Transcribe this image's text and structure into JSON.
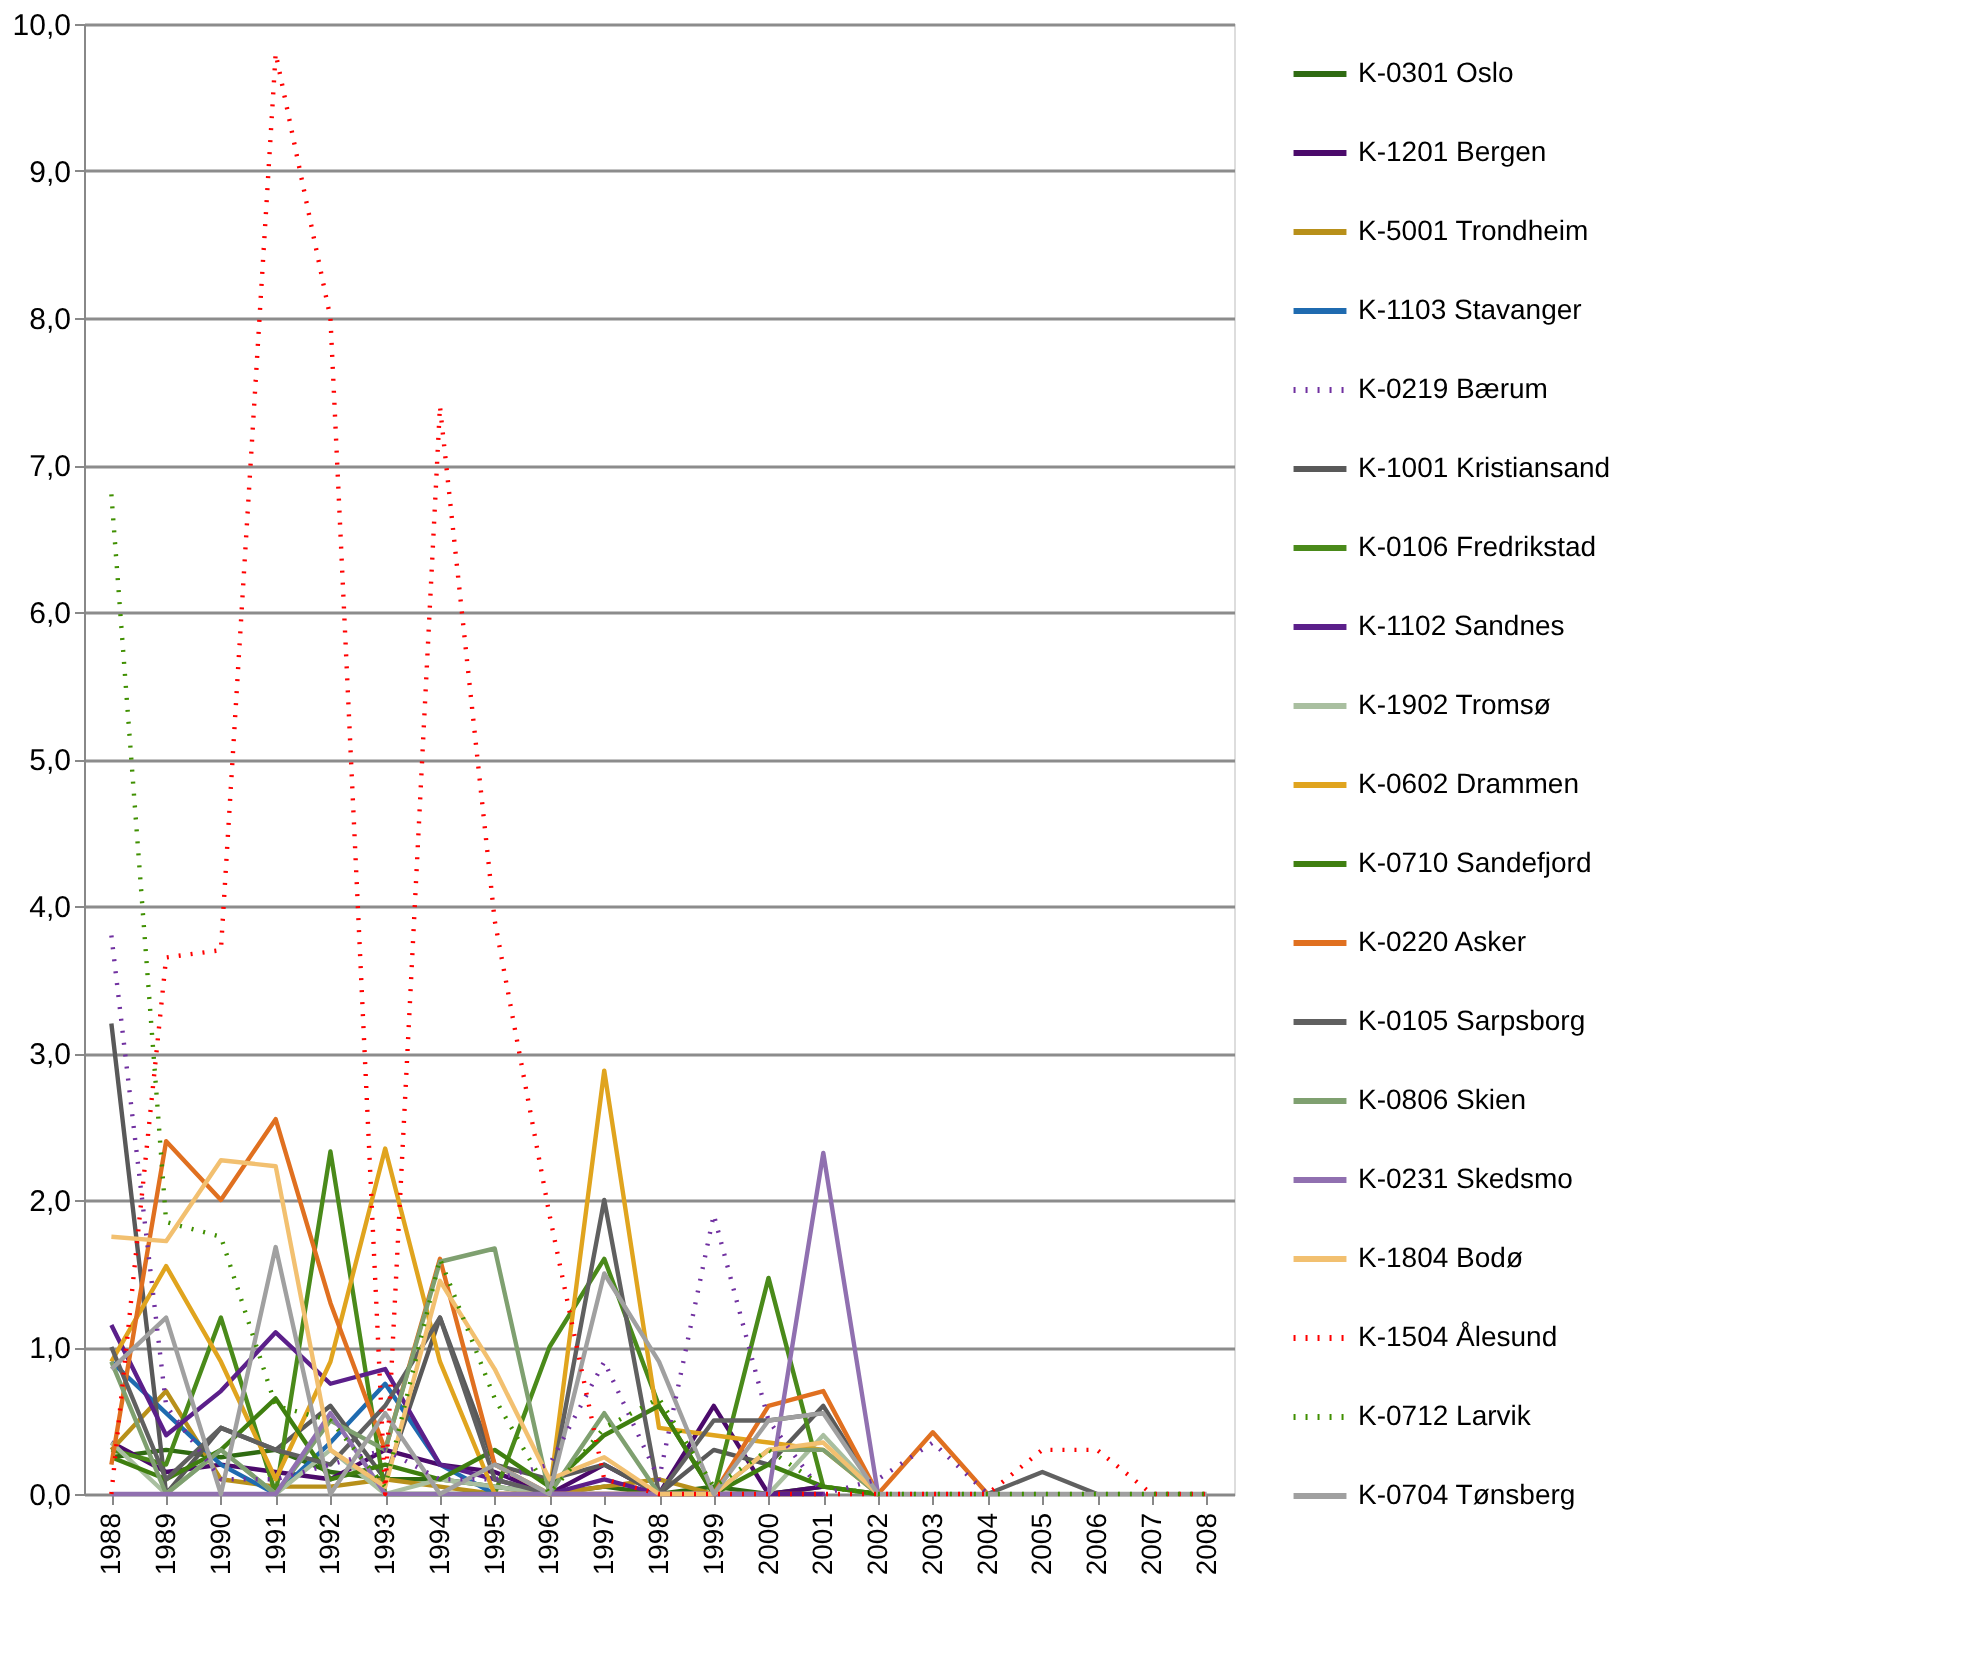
{
  "chart_data": {
    "type": "line",
    "categories": [
      "1988",
      "1989",
      "1990",
      "1991",
      "1992",
      "1993",
      "1994",
      "1995",
      "1996",
      "1997",
      "1998",
      "1999",
      "2000",
      "2001",
      "2002",
      "2003",
      "2004",
      "2005",
      "2006",
      "2007",
      "2008"
    ],
    "ylim": [
      0,
      10
    ],
    "yticks": [
      {
        "value": 0,
        "label": "0,0"
      },
      {
        "value": 1,
        "label": "1,0"
      },
      {
        "value": 2,
        "label": "2,0"
      },
      {
        "value": 3,
        "label": "3,0"
      },
      {
        "value": 4,
        "label": "4,0"
      },
      {
        "value": 5,
        "label": "5,0"
      },
      {
        "value": 6,
        "label": "6,0"
      },
      {
        "value": 7,
        "label": "7,0"
      },
      {
        "value": 8,
        "label": "8,0"
      },
      {
        "value": 9,
        "label": "9,0"
      },
      {
        "value": 10,
        "label": "10,0"
      }
    ],
    "grid": "y",
    "legend": "right",
    "marker": "none",
    "series": [
      {
        "name": "K-0301 Oslo",
        "color": "#2f6b12",
        "values": [
          0.25,
          0.3,
          0.25,
          0.3,
          0.15,
          0.1,
          0.1,
          0.05,
          0,
          0.05,
          0,
          0.05,
          0,
          0.05,
          null,
          null,
          null,
          null,
          null,
          null,
          null
        ]
      },
      {
        "name": "K-1201 Bergen",
        "color": "#4b0a6b",
        "values": [
          0.35,
          0.15,
          0.2,
          0.15,
          0.1,
          0.3,
          0.2,
          0.15,
          0,
          0.2,
          0,
          0.6,
          0,
          0.05,
          null,
          null,
          null,
          null,
          null,
          null,
          null
        ]
      },
      {
        "name": "K-5001 Trondheim",
        "color": "#b8901a",
        "values": [
          0.3,
          0.7,
          0.1,
          0.05,
          0.05,
          0.1,
          0.05,
          0,
          0,
          0.05,
          0.1,
          0,
          0,
          0,
          null,
          null,
          null,
          null,
          null,
          null,
          null
        ]
      },
      {
        "name": "K-1103 Stavanger",
        "color": "#1f6bb0",
        "values": [
          0.9,
          0.55,
          0.2,
          0,
          0.35,
          0.75,
          0.2,
          0,
          null,
          null,
          null,
          null,
          null,
          null,
          null,
          null,
          null,
          null,
          null,
          null,
          null
        ]
      },
      {
        "name": "K-0219 Bærum",
        "color": "#7030a0",
        "line_style": "dotted",
        "values": [
          3.8,
          0.6,
          0.1,
          0.1,
          0.2,
          0.3,
          0.1,
          0.1,
          0.2,
          0.9,
          0.1,
          1.9,
          0.5,
          0,
          0.1,
          0.35,
          0,
          null,
          null,
          null,
          null
        ]
      },
      {
        "name": "K-1001 Kristiansand",
        "color": "#595959",
        "values": [
          3.2,
          0,
          0.45,
          0.3,
          0.6,
          0.1,
          1.2,
          0.2,
          0.1,
          0.2,
          0,
          0.3,
          0.2,
          0.6,
          0,
          null,
          null,
          null,
          null,
          null,
          null
        ]
      },
      {
        "name": "K-0106 Fredrikstad",
        "color": "#4a8a1a",
        "values": [
          0.3,
          0.2,
          1.2,
          0,
          2.33,
          0,
          0,
          0,
          1.0,
          1.6,
          0.6,
          0,
          1.47,
          0.05,
          0,
          null,
          null,
          null,
          null,
          null,
          null
        ]
      },
      {
        "name": "K-1102 Sandnes",
        "color": "#5b1f8a",
        "values": [
          1.15,
          0.4,
          0.7,
          1.1,
          0.75,
          0.85,
          0.2,
          0.1,
          0,
          0.1,
          0,
          0,
          0,
          0,
          null,
          null,
          null,
          null,
          null,
          null,
          null
        ]
      },
      {
        "name": "K-1902 Tromsø",
        "color": "#a9bfa0",
        "values": [
          0.35,
          0,
          0.3,
          0,
          0.3,
          0,
          0.1,
          0.05,
          0,
          0,
          0,
          0,
          0,
          0.4,
          0,
          null,
          null,
          null,
          null,
          null,
          null
        ]
      },
      {
        "name": "K-0602 Drammen",
        "color": "#e0a41e",
        "values": [
          0.9,
          1.55,
          0.9,
          0.1,
          0.9,
          2.35,
          0.9,
          0,
          0,
          2.88,
          0.45,
          0.4,
          0.35,
          0.3,
          0,
          null,
          null,
          null,
          null,
          null,
          null
        ]
      },
      {
        "name": "K-0710 Sandefjord",
        "color": "#3f7f10",
        "values": [
          0.25,
          0.1,
          0.3,
          0.65,
          0.1,
          0.2,
          0.1,
          0.3,
          0.05,
          0.4,
          0.6,
          0,
          0.2,
          0.05,
          0,
          null,
          null,
          null,
          null,
          null,
          null
        ]
      },
      {
        "name": "K-0220 Asker",
        "color": "#e07020",
        "values": [
          0.2,
          2.4,
          2.0,
          2.55,
          1.3,
          0.3,
          1.6,
          0.2,
          0,
          0,
          0,
          0,
          0.6,
          0.7,
          0,
          0.42,
          0,
          null,
          null,
          null,
          null
        ]
      },
      {
        "name": "K-0105 Sarpsborg",
        "color": "#606060",
        "values": [
          1.0,
          0.1,
          0.45,
          0.3,
          0.2,
          0.6,
          1.2,
          0.1,
          0,
          2.0,
          0,
          0.5,
          0.5,
          0.55,
          null,
          null,
          0,
          0.15,
          0,
          null,
          null
        ]
      },
      {
        "name": "K-0806 Skien",
        "color": "#7fa070",
        "values": [
          0.9,
          0,
          0.3,
          0,
          0.5,
          0.3,
          1.58,
          1.67,
          0,
          0.55,
          0,
          0,
          0.3,
          0.3,
          0,
          null,
          null,
          null,
          null,
          null,
          null
        ]
      },
      {
        "name": "K-0231 Skedsmo",
        "color": "#9070b0",
        "values": [
          0,
          0,
          0,
          0,
          0.55,
          0,
          0,
          0,
          0,
          0,
          0,
          0,
          0,
          2.32,
          0,
          null,
          null,
          null,
          null,
          null,
          null
        ]
      },
      {
        "name": "K-1804 Bodø",
        "color": "#f2c070",
        "values": [
          1.75,
          1.72,
          2.27,
          2.23,
          0.3,
          0.05,
          1.45,
          0.85,
          0.1,
          0.25,
          0,
          0,
          0.3,
          0.35,
          0,
          null,
          null,
          null,
          null,
          null,
          null
        ]
      },
      {
        "name": "K-1504 Ålesund",
        "color": "#ff0000",
        "line_style": "dotted",
        "values": [
          0,
          3.65,
          3.7,
          9.8,
          8.0,
          0,
          7.4,
          3.9,
          1.9,
          0.1,
          0,
          0,
          0,
          0,
          0,
          0,
          0,
          0.3,
          0.3,
          0,
          0
        ]
      },
      {
        "name": "K-0712 Larvik",
        "color": "#3f8f00",
        "line_style": "dotted",
        "values": [
          6.8,
          1.85,
          1.75,
          0.6,
          0.5,
          0.05,
          1.6,
          0.65,
          0,
          0.45,
          0.65,
          0.05,
          0.3,
          0.05,
          0,
          0,
          0,
          0,
          0,
          0,
          0
        ]
      },
      {
        "name": "K-0704 Tønsberg",
        "color": "#a0a0a0",
        "values": [
          0.85,
          1.2,
          0,
          1.68,
          0,
          0.55,
          0,
          0.2,
          0,
          1.5,
          0.9,
          0,
          0.5,
          0.55,
          0,
          0,
          0,
          0,
          0,
          0,
          0
        ]
      }
    ]
  }
}
